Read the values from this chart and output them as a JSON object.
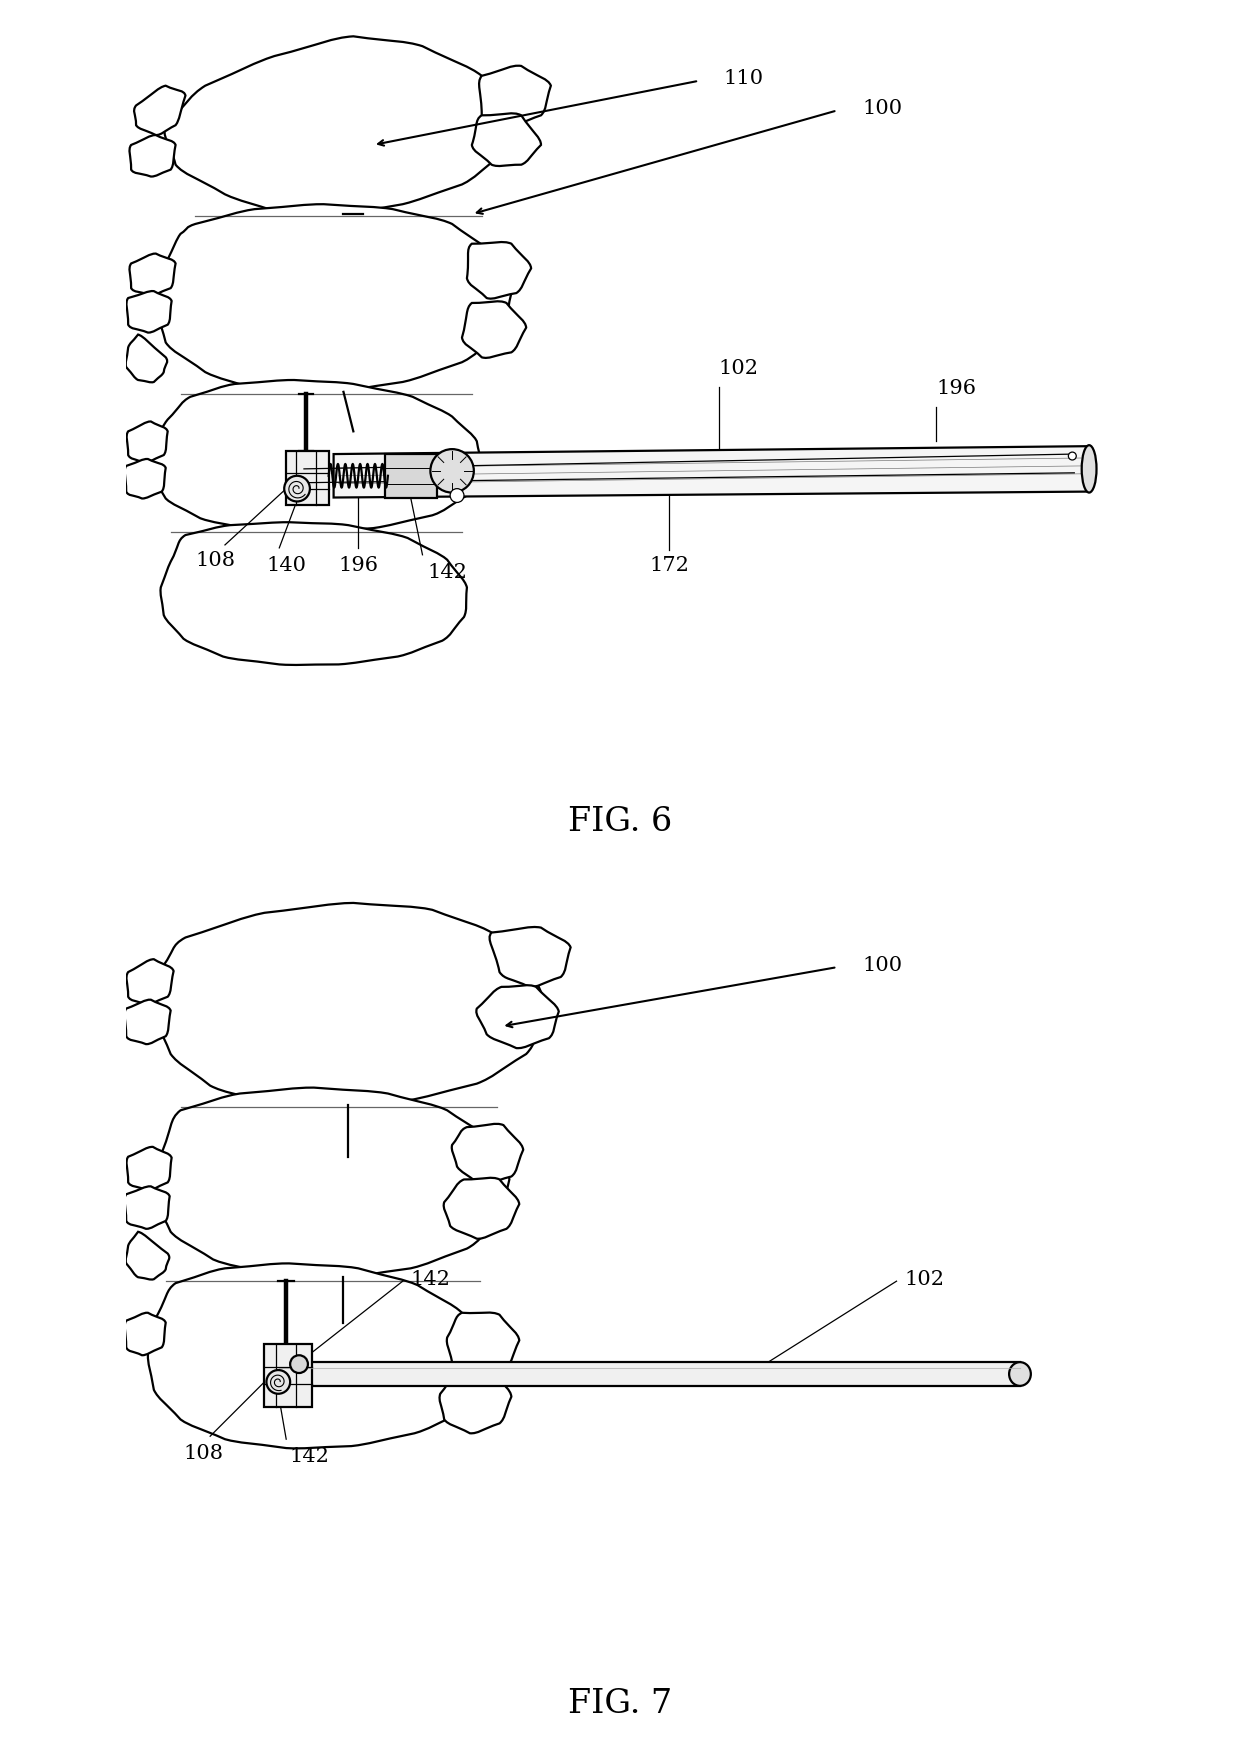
{
  "fig_width": 12.4,
  "fig_height": 17.56,
  "dpi": 100,
  "bg_color": "#ffffff",
  "line_color": "#000000",
  "line_width": 1.6,
  "thin_line": 0.9,
  "thick_line": 2.2,
  "fig6_title": "FIG. 6",
  "fig7_title": "FIG. 7",
  "title_fontsize": 24,
  "label_fontsize": 15
}
